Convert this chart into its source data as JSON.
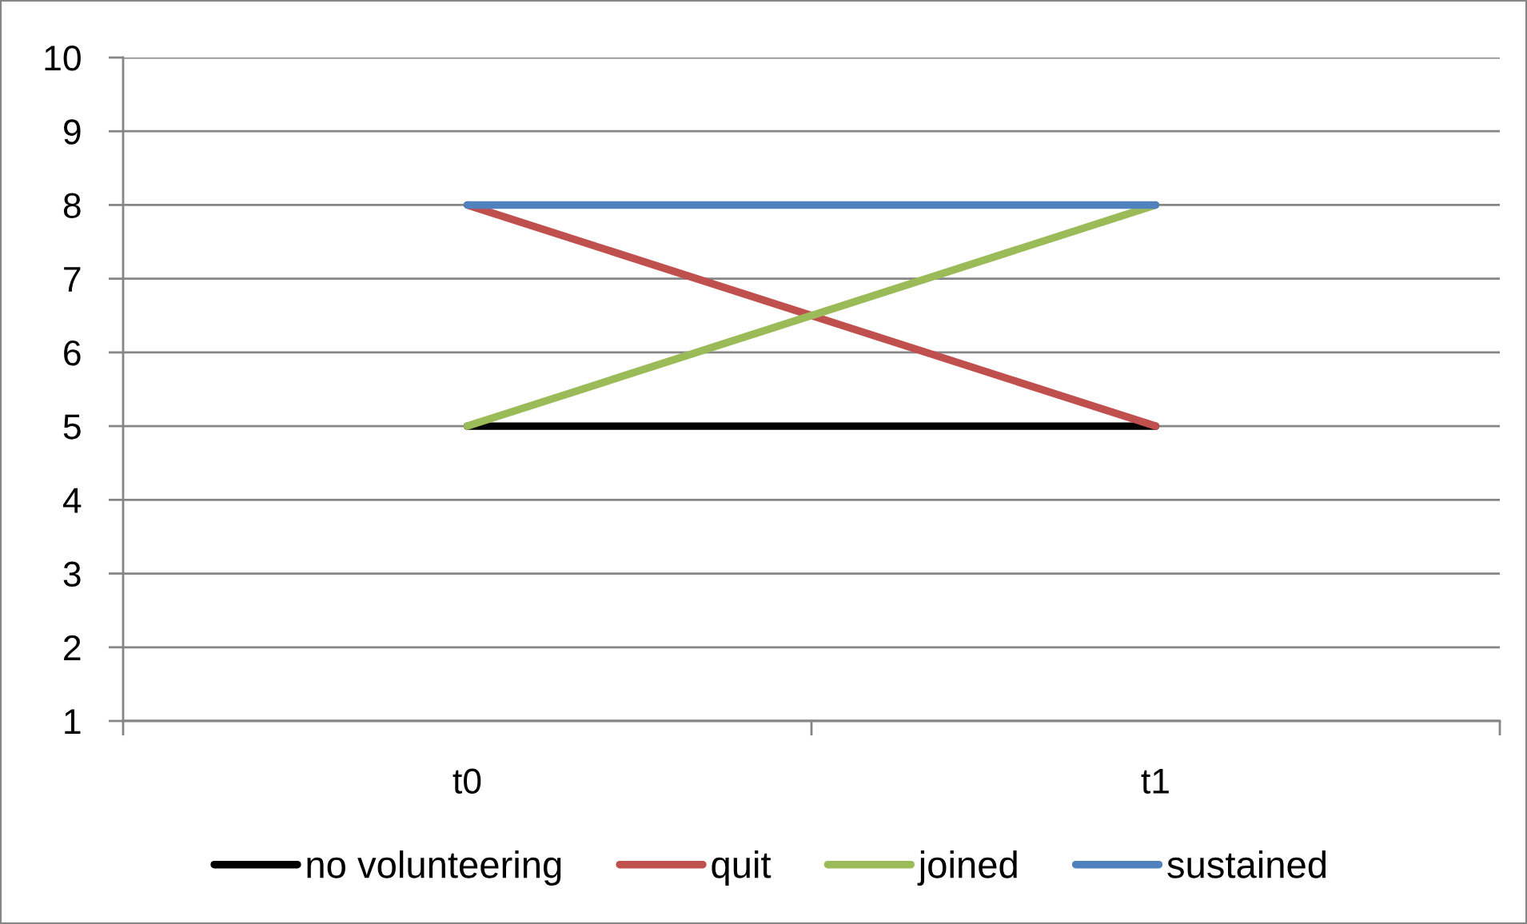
{
  "chart_data": {
    "type": "line",
    "categories": [
      "t0",
      "t1"
    ],
    "series": [
      {
        "name": "no volunteering",
        "color": "#000000",
        "values": [
          5,
          5
        ]
      },
      {
        "name": "quit",
        "color": "#c0504d",
        "values": [
          8,
          5
        ]
      },
      {
        "name": "joined",
        "color": "#9bbb59",
        "values": [
          5,
          8
        ]
      },
      {
        "name": "sustained",
        "color": "#4f81bd",
        "values": [
          8,
          8
        ]
      }
    ],
    "ylim": [
      1,
      10
    ],
    "yticks": [
      1,
      2,
      3,
      4,
      5,
      6,
      7,
      8,
      9,
      10
    ],
    "grid": "y",
    "legend": "bottom",
    "line_style": "solid"
  }
}
